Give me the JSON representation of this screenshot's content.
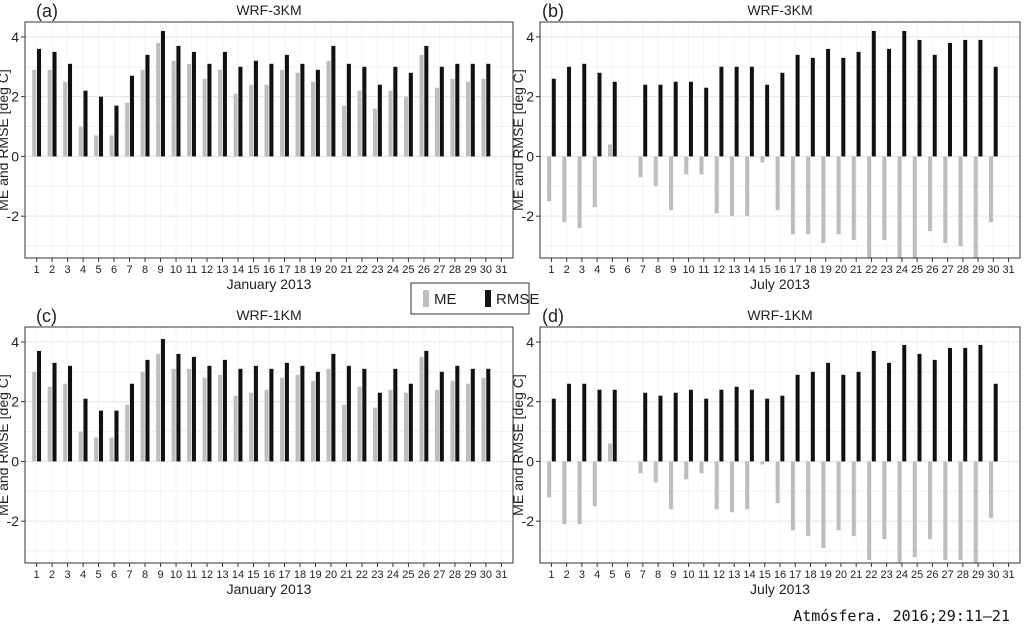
{
  "figure": {
    "ylabel": "ME and RMSE [deg C]",
    "legend": {
      "me_label": "ME",
      "rmse_label": "RMSE",
      "placement": "center"
    },
    "credit": "Atmósfera. 2016;29:11–21"
  },
  "colors": {
    "me": "#bdbdbd",
    "rmse": "#111111",
    "grid": "#e3e3e3",
    "axis": "#333333"
  },
  "chart_data": [
    {
      "panel": "(a)",
      "title": "WRF-3KM",
      "xlabel": "January 2013",
      "type": "bar",
      "ylim": [
        -3.4,
        4.5
      ],
      "yticks": [
        -2,
        0,
        2,
        4
      ],
      "grid": true,
      "categories": [
        "1",
        "2",
        "3",
        "4",
        "5",
        "6",
        "7",
        "8",
        "9",
        "10",
        "11",
        "12",
        "13",
        "14",
        "15",
        "16",
        "17",
        "18",
        "19",
        "20",
        "21",
        "22",
        "23",
        "24",
        "25",
        "26",
        "27",
        "28",
        "29",
        "30",
        "31"
      ],
      "series": [
        {
          "name": "ME",
          "values": [
            2.9,
            2.9,
            2.5,
            1.0,
            0.7,
            0.7,
            1.8,
            2.9,
            3.8,
            3.2,
            3.1,
            2.6,
            2.9,
            2.1,
            2.4,
            2.4,
            2.9,
            2.8,
            2.5,
            3.2,
            1.7,
            2.2,
            1.6,
            2.2,
            2.0,
            3.4,
            2.3,
            2.6,
            2.5,
            2.6,
            null
          ]
        },
        {
          "name": "RMSE",
          "values": [
            3.6,
            3.5,
            3.1,
            2.2,
            2.0,
            1.7,
            2.7,
            3.4,
            4.2,
            3.7,
            3.5,
            3.1,
            3.5,
            3.0,
            3.2,
            3.1,
            3.4,
            3.1,
            2.9,
            3.7,
            3.1,
            3.0,
            2.4,
            3.0,
            2.8,
            3.7,
            3.0,
            3.1,
            3.1,
            3.1,
            null
          ]
        }
      ]
    },
    {
      "panel": "(b)",
      "title": "WRF-3KM",
      "xlabel": "July 2013",
      "type": "bar",
      "ylim": [
        -3.4,
        4.5
      ],
      "yticks": [
        -2,
        0,
        2,
        4
      ],
      "grid": true,
      "categories": [
        "1",
        "2",
        "3",
        "4",
        "5",
        "6",
        "7",
        "8",
        "9",
        "10",
        "11",
        "12",
        "13",
        "14",
        "15",
        "16",
        "17",
        "18",
        "19",
        "20",
        "21",
        "22",
        "23",
        "24",
        "25",
        "26",
        "27",
        "28",
        "29",
        "30",
        "31"
      ],
      "series": [
        {
          "name": "ME",
          "values": [
            -1.5,
            -2.2,
            -2.4,
            -1.7,
            0.4,
            null,
            -0.7,
            -1.0,
            -1.8,
            -0.6,
            -0.6,
            -1.9,
            -2.0,
            -2.0,
            -0.2,
            -1.8,
            -2.6,
            -2.6,
            -2.9,
            -2.6,
            -2.8,
            -3.4,
            -2.8,
            -3.4,
            -3.4,
            -2.5,
            -2.9,
            -3.0,
            -3.4,
            -2.2,
            null
          ]
        },
        {
          "name": "RMSE",
          "values": [
            2.6,
            3.0,
            3.1,
            2.8,
            2.5,
            null,
            2.4,
            2.4,
            2.5,
            2.5,
            2.3,
            3.0,
            3.0,
            3.0,
            2.4,
            2.8,
            3.4,
            3.3,
            3.6,
            3.3,
            3.5,
            4.2,
            3.6,
            4.2,
            3.9,
            3.4,
            3.8,
            3.9,
            3.9,
            3.0,
            null
          ]
        }
      ]
    },
    {
      "panel": "(c)",
      "title": "WRF-1KM",
      "xlabel": "January 2013",
      "type": "bar",
      "ylim": [
        -3.4,
        4.5
      ],
      "yticks": [
        -2,
        0,
        2,
        4
      ],
      "grid": true,
      "categories": [
        "1",
        "2",
        "3",
        "4",
        "5",
        "6",
        "7",
        "8",
        "9",
        "10",
        "11",
        "12",
        "13",
        "14",
        "15",
        "16",
        "17",
        "18",
        "19",
        "20",
        "21",
        "22",
        "23",
        "24",
        "25",
        "26",
        "27",
        "28",
        "29",
        "30",
        "31"
      ],
      "series": [
        {
          "name": "ME",
          "values": [
            3.0,
            2.5,
            2.6,
            1.0,
            0.8,
            0.8,
            1.9,
            3.0,
            3.6,
            3.1,
            3.1,
            2.8,
            2.9,
            2.2,
            2.3,
            2.4,
            2.8,
            2.9,
            2.7,
            3.1,
            1.9,
            2.5,
            1.8,
            2.4,
            2.3,
            3.5,
            2.4,
            2.7,
            2.6,
            2.8,
            null
          ]
        },
        {
          "name": "RMSE",
          "values": [
            3.7,
            3.3,
            3.2,
            2.1,
            1.7,
            1.7,
            2.6,
            3.4,
            4.1,
            3.6,
            3.5,
            3.2,
            3.4,
            3.1,
            3.2,
            3.1,
            3.3,
            3.2,
            3.0,
            3.6,
            3.2,
            3.1,
            2.3,
            3.1,
            2.6,
            3.7,
            3.0,
            3.2,
            3.1,
            3.1,
            null
          ]
        }
      ]
    },
    {
      "panel": "(d)",
      "title": "WRF-1KM",
      "xlabel": "July 2013",
      "type": "bar",
      "ylim": [
        -3.4,
        4.5
      ],
      "yticks": [
        -2,
        0,
        2,
        4
      ],
      "grid": true,
      "categories": [
        "1",
        "2",
        "3",
        "4",
        "5",
        "6",
        "7",
        "8",
        "9",
        "10",
        "11",
        "12",
        "13",
        "14",
        "15",
        "16",
        "17",
        "18",
        "19",
        "20",
        "21",
        "22",
        "23",
        "24",
        "25",
        "26",
        "27",
        "28",
        "29",
        "30",
        "31"
      ],
      "series": [
        {
          "name": "ME",
          "values": [
            -1.2,
            -2.1,
            -2.1,
            -1.5,
            0.6,
            null,
            -0.4,
            -0.7,
            -1.6,
            -0.6,
            -0.4,
            -1.6,
            -1.7,
            -1.6,
            -0.1,
            -1.4,
            -2.3,
            -2.5,
            -2.9,
            -2.3,
            -2.5,
            -3.3,
            -2.6,
            -3.4,
            -3.2,
            -2.6,
            -3.3,
            -3.3,
            -3.4,
            -1.9,
            null
          ]
        },
        {
          "name": "RMSE",
          "values": [
            2.1,
            2.6,
            2.6,
            2.4,
            2.4,
            null,
            2.3,
            2.2,
            2.3,
            2.4,
            2.1,
            2.4,
            2.5,
            2.4,
            2.1,
            2.2,
            2.9,
            3.0,
            3.3,
            2.9,
            3.0,
            3.7,
            3.3,
            3.9,
            3.6,
            3.4,
            3.8,
            3.8,
            3.9,
            2.6,
            null
          ]
        }
      ]
    }
  ]
}
